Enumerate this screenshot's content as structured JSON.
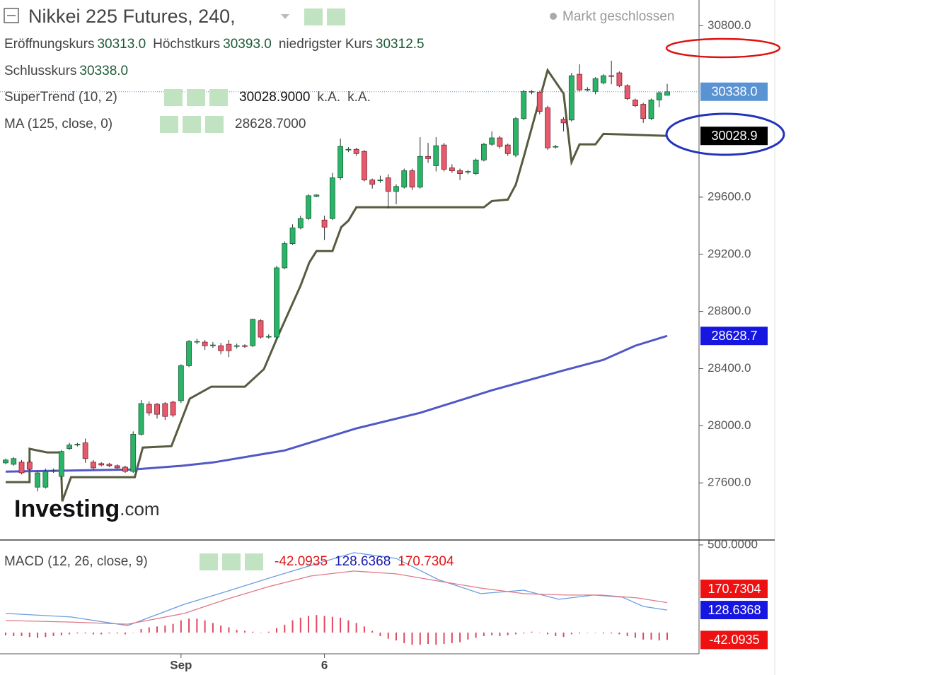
{
  "header": {
    "title": "Nikkei 225 Futures, 240,",
    "status": "Markt geschlossen",
    "ohlc": [
      {
        "label": "Eröffnungskurs",
        "value": "30313.0"
      },
      {
        "label": "Höchstkurs",
        "value": "30393.0"
      },
      {
        "label": "niedrigster Kurs",
        "value": "30312.5"
      },
      {
        "label": "Schlusskurs",
        "value": "30338.0"
      }
    ]
  },
  "indicators": [
    {
      "name": "SuperTrend (10, 2)",
      "values": [
        "30028.9000",
        "k.A.",
        "k.A."
      ]
    },
    {
      "name": "MA (125, close, 0)",
      "values": [
        "28628.7000"
      ]
    },
    {
      "name": "MACD (12, 26, close, 9)",
      "values": [
        "-42.0935",
        "128.6368",
        "170.7304"
      ]
    }
  ],
  "logo": {
    "brand": "Investing",
    "suffix": ".com"
  },
  "chart_data": [
    {
      "type": "candlestick",
      "categories": [
        null,
        null,
        null,
        null,
        null,
        null,
        null,
        null,
        null,
        null,
        null,
        null,
        null,
        null,
        null,
        null,
        null,
        null,
        null,
        null,
        null,
        null,
        "Sep",
        null,
        null,
        null,
        null,
        null,
        null,
        null,
        null,
        null,
        null,
        null,
        null,
        null,
        null,
        null,
        null,
        null,
        "6",
        null,
        null,
        null,
        null,
        null,
        null,
        null,
        null,
        null,
        null,
        null,
        null,
        null,
        null,
        null,
        null,
        null,
        null,
        null,
        null,
        null,
        null,
        null,
        null,
        null,
        null,
        null,
        null,
        null,
        null,
        null,
        null,
        null,
        null,
        null,
        null,
        null,
        null,
        null,
        null,
        null,
        null,
        null
      ],
      "open": [
        27740,
        27730,
        27745,
        27745,
        27570,
        27570,
        27680,
        27645,
        27840,
        27865,
        27880,
        27745,
        27735,
        27730,
        27720,
        27710,
        27680,
        27940,
        28150,
        28150,
        28155,
        28165,
        28175,
        28420,
        28585,
        28585,
        28560,
        28560,
        28570,
        28555,
        28560,
        28560,
        28735,
        28620,
        28620,
        29105,
        29275,
        29385,
        29450,
        29605,
        29440,
        29450,
        29735,
        29930,
        29935,
        29920,
        29720,
        29715,
        29735,
        29640,
        29670,
        29785,
        29670,
        29885,
        29820,
        29965,
        29805,
        29785,
        29775,
        29765,
        29860,
        29970,
        30015,
        29965,
        29895,
        30150,
        30335,
        30335,
        30225,
        29950,
        30145,
        30140,
        30460,
        30350,
        30340,
        30400,
        30450,
        30470,
        30380,
        30280,
        30250,
        30150,
        30280,
        30313
      ],
      "high": [
        27770,
        27780,
        27760,
        27760,
        27680,
        27700,
        27700,
        27830,
        27880,
        27880,
        27910,
        27760,
        27745,
        27740,
        27730,
        27720,
        27960,
        28180,
        28170,
        28160,
        28165,
        28175,
        28430,
        28600,
        28610,
        28600,
        28585,
        28580,
        28600,
        28575,
        28570,
        28750,
        28745,
        28640,
        29120,
        29290,
        29410,
        29470,
        29620,
        29620,
        29470,
        29770,
        30010,
        29950,
        29945,
        29930,
        29730,
        29750,
        29760,
        29690,
        29800,
        29800,
        30020,
        29980,
        30020,
        29980,
        29830,
        29800,
        29790,
        29870,
        29980,
        30060,
        30030,
        29975,
        30160,
        30350,
        30350,
        30345,
        30240,
        29965,
        30160,
        30470,
        30530,
        30370,
        30440,
        30460,
        30555,
        30480,
        30390,
        30290,
        30260,
        30290,
        30340,
        30393
      ],
      "low": [
        27730,
        27720,
        27660,
        27680,
        27540,
        27560,
        27670,
        27620,
        27830,
        27855,
        27740,
        27690,
        27715,
        27710,
        27695,
        27670,
        27670,
        27930,
        28070,
        28050,
        28040,
        28060,
        28160,
        28410,
        28570,
        28530,
        28545,
        28500,
        28480,
        28540,
        28545,
        28550,
        28610,
        28610,
        28610,
        29095,
        29265,
        29375,
        29440,
        29600,
        29300,
        29440,
        29720,
        29915,
        29890,
        29710,
        29660,
        29700,
        29520,
        29550,
        29660,
        29650,
        29660,
        29840,
        29780,
        29780,
        29770,
        29720,
        29760,
        29755,
        29850,
        29960,
        29940,
        29890,
        29880,
        30140,
        30320,
        30180,
        29930,
        29940,
        30060,
        30130,
        30340,
        30340,
        30320,
        30390,
        30390,
        30370,
        30280,
        30230,
        30120,
        30140,
        30230,
        30312.5
      ],
      "close": [
        27760,
        27770,
        27670,
        27695,
        27670,
        27680,
        27685,
        27820,
        27865,
        27870,
        27770,
        27705,
        27725,
        27720,
        27705,
        27680,
        27940,
        28155,
        28090,
        28080,
        28065,
        28075,
        28420,
        28590,
        28590,
        28560,
        28565,
        28525,
        28525,
        28560,
        28555,
        28745,
        28620,
        28625,
        29105,
        29275,
        29385,
        29450,
        29610,
        29615,
        29390,
        29735,
        29955,
        29935,
        29905,
        29720,
        29690,
        29720,
        29640,
        29675,
        29785,
        29670,
        29885,
        29870,
        29960,
        29795,
        29785,
        29765,
        29780,
        29860,
        29970,
        30015,
        29955,
        29905,
        30150,
        30340,
        30340,
        30200,
        29945,
        29955,
        30120,
        30450,
        30350,
        30355,
        30430,
        30450,
        30445,
        30380,
        30290,
        30240,
        30150,
        30280,
        30330,
        30338
      ],
      "up_color": "#2bb368",
      "down_color": "#e65a6c",
      "close_label": "30338.0",
      "close_color": "#5a93d3",
      "lines": [
        {
          "color": "#575b3f",
          "x": [
            0,
            3,
            3,
            5.2,
            6.9,
            7.1,
            8.2,
            16.2,
            17.2,
            20.8,
            23.1,
            25.8,
            30,
            32.4,
            34.1,
            37,
            38.1,
            39,
            41,
            42.1,
            43,
            44,
            60,
            61,
            63,
            64,
            65,
            68,
            70,
            71,
            72,
            74,
            75,
            83
          ],
          "values": [
            27605,
            27605,
            27838,
            27813,
            27813,
            27471,
            27640,
            27640,
            27847,
            27857,
            28189,
            28273,
            28273,
            28396,
            28619,
            28980,
            29143,
            29222,
            29222,
            29390,
            29435,
            29529,
            29529,
            29573,
            29583,
            29687,
            29880,
            30488,
            30325,
            29845,
            29969,
            29969,
            30043,
            30028.9
          ],
          "last_label": "30028.9",
          "label_color": "#000000"
        },
        {
          "color": "#5157c6",
          "x": [
            0,
            16,
            22,
            26,
            35,
            44,
            52,
            61,
            70,
            75,
            79,
            83
          ],
          "values": [
            27679,
            27694,
            27719,
            27743,
            27827,
            27981,
            28090,
            28248,
            28387,
            28461,
            28560,
            28628.7
          ],
          "last_label": "28628.7",
          "label_color": "#1616e0"
        }
      ],
      "ylim": [
        27200,
        30980
      ],
      "yticks": [
        {
          "value": 27600,
          "label": "27600.0"
        },
        {
          "value": 28000,
          "label": "28000.0"
        },
        {
          "value": 28400,
          "label": "28400.0"
        },
        {
          "value": 28800,
          "label": "28800.0"
        },
        {
          "value": 29200,
          "label": "29200.0"
        },
        {
          "value": 29600,
          "label": "29600.0"
        },
        {
          "value": 30800,
          "label": "30800.0"
        }
      ]
    },
    {
      "type": "macd",
      "histogram": {
        "color": "#e0485e",
        "values": [
          -15,
          -20,
          -20,
          -25,
          -30,
          -25,
          -20,
          -15,
          -10,
          -5,
          -5,
          -10,
          -10,
          -5,
          -5,
          -10,
          0,
          20,
          30,
          35,
          40,
          50,
          70,
          80,
          80,
          70,
          55,
          40,
          30,
          15,
          10,
          5,
          0,
          5,
          25,
          45,
          70,
          85,
          95,
          100,
          95,
          90,
          85,
          70,
          55,
          35,
          10,
          -20,
          -35,
          -45,
          -60,
          -70,
          -70,
          -65,
          -70,
          -65,
          -60,
          -55,
          -40,
          -30,
          -20,
          -15,
          -20,
          -15,
          -10,
          -5,
          5,
          0,
          -10,
          -20,
          -25,
          -10,
          -5,
          0,
          0,
          -5,
          -5,
          -10,
          -20,
          -30,
          -40,
          -40,
          -45,
          -42.0935
        ],
        "last_label": "-42.0935",
        "label_color": "#ee1111"
      },
      "lines": [
        {
          "color": "#6a9ee0",
          "x": [
            0,
            8.2,
            15.3,
            22.4,
            27.7,
            33,
            38.3,
            43.7,
            49,
            54.3,
            59.6,
            65,
            69.4,
            73.8,
            77.4,
            80,
            83
          ],
          "values": [
            109,
            89,
            40,
            161,
            234,
            310,
            383,
            456,
            423,
            302,
            222,
            242,
            190,
            214,
            202,
            149,
            128.6368
          ],
          "last_label": "128.6368",
          "label_color": "#1616e0"
        },
        {
          "color": "#e0788a",
          "x": [
            0,
            8.2,
            15.3,
            22.4,
            27.7,
            33,
            38.3,
            43.7,
            49,
            54.3,
            59.6,
            65,
            70.3,
            74.7,
            79.2,
            83
          ],
          "values": [
            69,
            60,
            48,
            109,
            190,
            262,
            323,
            351,
            335,
            294,
            254,
            222,
            214,
            214,
            198,
            170.7304
          ],
          "last_label": "170.7304",
          "label_color": "#ee1111"
        }
      ],
      "ylim": [
        -121,
        524
      ],
      "yticks": [
        {
          "value": 500,
          "label": "500.0000"
        }
      ]
    }
  ]
}
